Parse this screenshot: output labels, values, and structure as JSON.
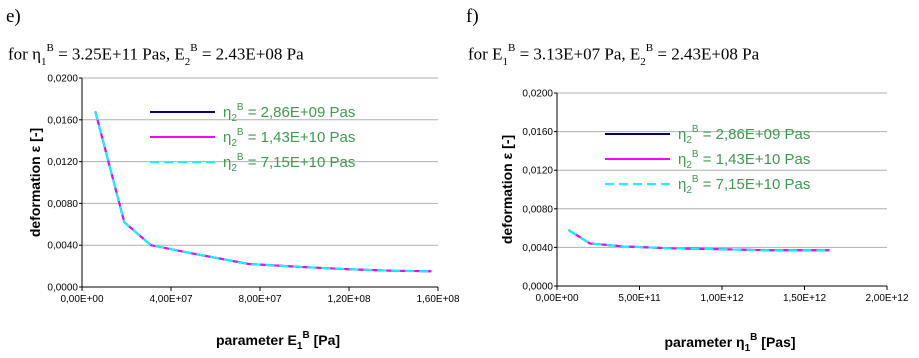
{
  "panels": [
    {
      "label": "e)",
      "caption": {
        "prefix": "for ",
        "sym1": "η",
        "sub1": "1",
        "sup1": "B",
        "mid1": " = 3.25E+11 Pas, E",
        "sub2": "2",
        "sup2": "B",
        "mid2": " = 2.43E+08 Pa"
      }
    },
    {
      "label": "f)",
      "caption": {
        "prefix": "for E",
        "sym1": "",
        "sub1": "1",
        "sup1": "B",
        "mid1": " = 3.13E+07 Pa, E",
        "sub2": "2",
        "sup2": "B",
        "mid2": " = 2.43E+08 Pa"
      }
    }
  ],
  "chart_data": [
    {
      "type": "line",
      "xlabel": "parameter E",
      "xlabel_sub": "1",
      "xlabel_sup": "B",
      "xlabel_unit": " [Pa]",
      "ylabel": "deformation ε [-]",
      "xlim": [
        0,
        160000000
      ],
      "ylim": [
        0,
        0.02
      ],
      "xticks": [
        0,
        40000000,
        80000000,
        120000000,
        160000000
      ],
      "xtick_labels": [
        "0,00E+00",
        "4,00E+07",
        "8,00E+07",
        "1,20E+08",
        "1,60E+08"
      ],
      "yticks": [
        0,
        0.004,
        0.008,
        0.012,
        0.016,
        0.02
      ],
      "ytick_labels": [
        "0,0000",
        "0,0040",
        "0,0080",
        "0,0120",
        "0,0160",
        "0,0200"
      ],
      "grid": "horizontal",
      "legend_position": "top-right",
      "series": [
        {
          "name_prefix": "η",
          "name_sub": "2",
          "name_sup": "B",
          "name_value": " = 2,86E+09 Pas",
          "color": "#000080",
          "dash": "solid",
          "x": [
            6000000,
            19000000,
            31000000,
            50000000,
            75000000,
            100000000,
            120000000,
            140000000,
            157000000
          ],
          "y": [
            0.0168,
            0.0062,
            0.004,
            0.0032,
            0.0022,
            0.0019,
            0.0017,
            0.00155,
            0.0015
          ]
        },
        {
          "name_prefix": "η",
          "name_sub": "2",
          "name_sup": "B",
          "name_value": " = 1,43E+10 Pas",
          "color": "#ff00ff",
          "dash": "solid",
          "x": [
            6000000,
            19000000,
            31000000,
            50000000,
            75000000,
            100000000,
            120000000,
            140000000,
            157000000
          ],
          "y": [
            0.0168,
            0.0062,
            0.004,
            0.0032,
            0.0022,
            0.0019,
            0.0017,
            0.00155,
            0.0015
          ]
        },
        {
          "name_prefix": "η",
          "name_sub": "2",
          "name_sup": "B",
          "name_value": " = 7,15E+10 Pas",
          "color": "#00ffff",
          "dash": "dashed",
          "x": [
            6000000,
            19000000,
            31000000,
            50000000,
            75000000,
            100000000,
            120000000,
            140000000,
            157000000
          ],
          "y": [
            0.0168,
            0.0062,
            0.004,
            0.0032,
            0.0022,
            0.0019,
            0.0017,
            0.00155,
            0.0015
          ]
        }
      ]
    },
    {
      "type": "line",
      "xlabel": "parameter η",
      "xlabel_sub": "1",
      "xlabel_sup": "B",
      "xlabel_unit": " [Pas]",
      "ylabel": "deformation ε [-]",
      "xlim": [
        0,
        2000000000000
      ],
      "ylim": [
        0,
        0.02
      ],
      "xticks": [
        0,
        500000000000,
        1000000000000,
        1500000000000,
        2000000000000
      ],
      "xtick_labels": [
        "0,00E+00",
        "5,00E+11",
        "1,00E+12",
        "1,50E+12",
        "2,00E+12"
      ],
      "yticks": [
        0,
        0.004,
        0.008,
        0.012,
        0.016,
        0.02
      ],
      "ytick_labels": [
        "0,0000",
        "0,0040",
        "0,0080",
        "0,0120",
        "0,0160",
        "0,0200"
      ],
      "grid": "horizontal",
      "legend_position": "top-right",
      "series": [
        {
          "name_prefix": "η",
          "name_sub": "2",
          "name_sup": "B",
          "name_value": " = 2,86E+09 Pas",
          "color": "#000080",
          "dash": "solid",
          "x": [
            70000000000,
            200000000000,
            400000000000,
            700000000000,
            1000000000000,
            1300000000000,
            1650000000000
          ],
          "y": [
            0.0058,
            0.0044,
            0.0041,
            0.0039,
            0.0038,
            0.0037,
            0.0037
          ]
        },
        {
          "name_prefix": "η",
          "name_sub": "2",
          "name_sup": "B",
          "name_value": " = 1,43E+10 Pas",
          "color": "#ff00ff",
          "dash": "solid",
          "x": [
            70000000000,
            200000000000,
            400000000000,
            700000000000,
            1000000000000,
            1300000000000,
            1650000000000
          ],
          "y": [
            0.0058,
            0.0044,
            0.0041,
            0.0039,
            0.0038,
            0.0037,
            0.0037
          ]
        },
        {
          "name_prefix": "η",
          "name_sub": "2",
          "name_sup": "B",
          "name_value": " = 7,15E+10 Pas",
          "color": "#00ffff",
          "dash": "dashed",
          "x": [
            70000000000,
            200000000000,
            400000000000,
            700000000000,
            1000000000000,
            1300000000000,
            1650000000000
          ],
          "y": [
            0.0058,
            0.0044,
            0.0041,
            0.0039,
            0.0038,
            0.0037,
            0.0037
          ]
        }
      ]
    }
  ]
}
